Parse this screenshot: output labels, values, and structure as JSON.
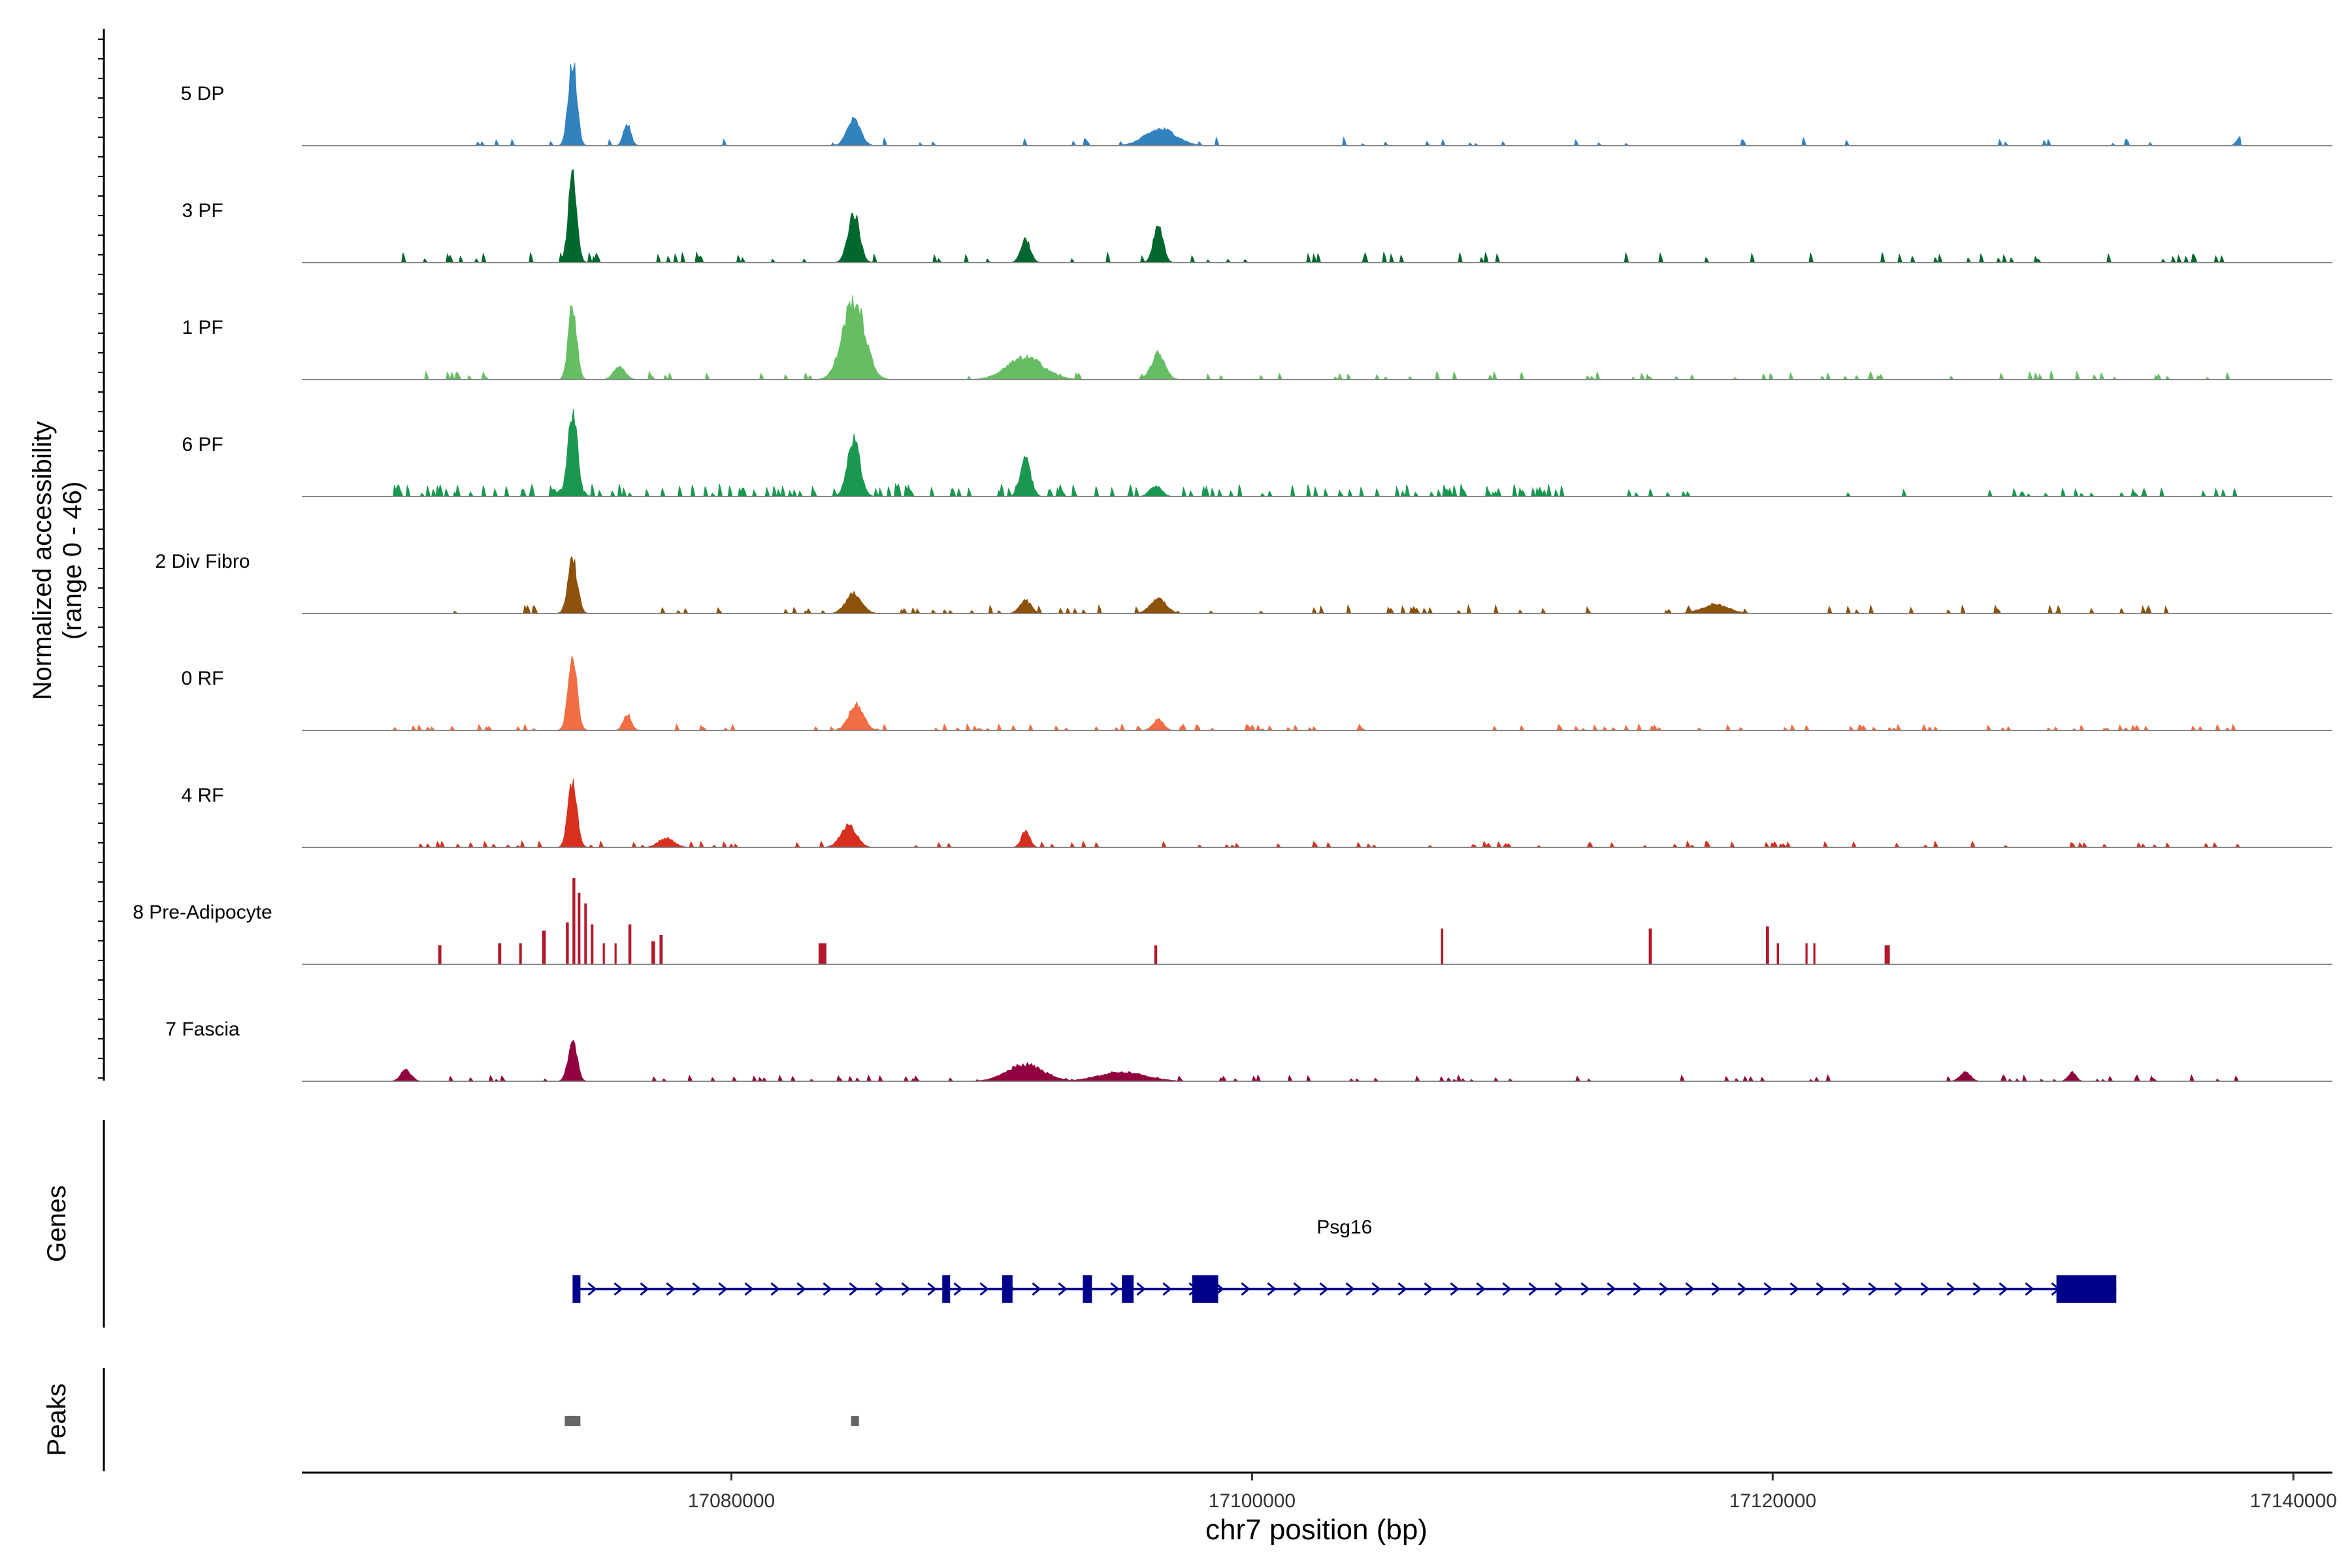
{
  "chart_data": {
    "type": "coverage-track",
    "y_axis": {
      "title_line1": "Normalized accessibility",
      "title_line2": "(range 0 - 46)",
      "ylim": [
        0,
        46
      ]
    },
    "x_axis": {
      "title": "chr7 position (bp)",
      "xlim": [
        17063500,
        17141500
      ],
      "ticks": [
        17080000,
        17100000,
        17120000,
        17140000
      ],
      "tick_labels": [
        "17080000",
        "17100000",
        "17120000",
        "17140000"
      ]
    },
    "region": [
      17067000,
      17138000
    ],
    "tracks": [
      {
        "name": "5 DP",
        "color": "#3182bd",
        "peaks": [
          [
            17073900,
            46,
            160
          ],
          [
            17076000,
            12,
            140
          ],
          [
            17084700,
            14,
            260
          ],
          [
            17096500,
            9,
            600
          ],
          [
            17138000,
            6,
            150
          ]
        ],
        "noise": [
          [
            17067000,
            17138000,
            0.028,
            4
          ]
        ]
      },
      {
        "name": "3 PF",
        "color": "#00682e",
        "peaks": [
          [
            17073900,
            46,
            160
          ],
          [
            17084700,
            27,
            220
          ],
          [
            17091300,
            13,
            180
          ],
          [
            17096400,
            20,
            180
          ]
        ],
        "noise": [
          [
            17067000,
            17138000,
            0.06,
            5
          ]
        ]
      },
      {
        "name": "1 PF",
        "color": "#66bd63",
        "peaks": [
          [
            17073900,
            40,
            160
          ],
          [
            17084700,
            43,
            420
          ],
          [
            17091300,
            12,
            700
          ],
          [
            17096400,
            14,
            260
          ],
          [
            17075700,
            7,
            220
          ]
        ],
        "noise": [
          [
            17067000,
            17138000,
            0.06,
            4
          ]
        ]
      },
      {
        "name": "6 PF",
        "color": "#1a9850",
        "peaks": [
          [
            17073900,
            46,
            180
          ],
          [
            17084700,
            30,
            240
          ],
          [
            17091300,
            20,
            200
          ],
          [
            17096300,
            6,
            220
          ],
          [
            17073800,
            8,
            300
          ]
        ],
        "noise": [
          [
            17067000,
            17112000,
            0.13,
            6
          ],
          [
            17112000,
            17138000,
            0.05,
            4
          ]
        ]
      },
      {
        "name": "2 Div Fibro",
        "color": "#8c510a",
        "peaks": [
          [
            17073900,
            29,
            180
          ],
          [
            17084700,
            11,
            300
          ],
          [
            17091300,
            7,
            220
          ],
          [
            17096400,
            8,
            300
          ],
          [
            17117800,
            5,
            500
          ]
        ],
        "noise": [
          [
            17067000,
            17138000,
            0.07,
            4
          ]
        ]
      },
      {
        "name": "0 RF",
        "color": "#f16d43",
        "peaks": [
          [
            17073900,
            38,
            170
          ],
          [
            17084800,
            14,
            280
          ],
          [
            17076000,
            9,
            150
          ],
          [
            17096400,
            6,
            200
          ]
        ],
        "noise": [
          [
            17067000,
            17138000,
            0.07,
            3
          ]
        ]
      },
      {
        "name": "4 RF",
        "color": "#d7301f",
        "peaks": [
          [
            17073900,
            35,
            170
          ],
          [
            17084500,
            12,
            300
          ],
          [
            17091300,
            9,
            160
          ],
          [
            17077500,
            5,
            300
          ]
        ],
        "noise": [
          [
            17067000,
            17138000,
            0.07,
            3
          ]
        ]
      },
      {
        "name": "8 Pre-Adipocyte",
        "color": "#b2182b",
        "bars": [
          [
            17068800,
            9,
            120
          ],
          [
            17071100,
            10,
            120
          ],
          [
            17071900,
            10,
            100
          ],
          [
            17072800,
            16,
            140
          ],
          [
            17073700,
            20,
            110
          ],
          [
            17073950,
            41,
            110
          ],
          [
            17074150,
            34,
            100
          ],
          [
            17074400,
            29,
            100
          ],
          [
            17074650,
            19,
            100
          ],
          [
            17075100,
            10,
            80
          ],
          [
            17075550,
            10,
            80
          ],
          [
            17076100,
            19,
            110
          ],
          [
            17077000,
            11,
            140
          ],
          [
            17077300,
            14,
            120
          ],
          [
            17083500,
            10,
            300
          ],
          [
            17096300,
            9,
            110
          ],
          [
            17107300,
            17,
            90
          ],
          [
            17115300,
            17,
            120
          ],
          [
            17119800,
            18,
            120
          ],
          [
            17120200,
            10,
            90
          ],
          [
            17121300,
            10,
            80
          ],
          [
            17121600,
            10,
            80
          ],
          [
            17124400,
            9,
            200
          ]
        ],
        "noise": []
      },
      {
        "name": "7 Fascia",
        "color": "#91003f",
        "peaks": [
          [
            17073900,
            22,
            170
          ],
          [
            17091300,
            9,
            700
          ],
          [
            17095000,
            5,
            900
          ],
          [
            17067500,
            6,
            200
          ],
          [
            17127400,
            5,
            200
          ],
          [
            17131500,
            5,
            150
          ]
        ],
        "noise": [
          [
            17067000,
            17138000,
            0.06,
            3
          ]
        ]
      }
    ],
    "genes": {
      "title": "Genes",
      "name": "Psg16",
      "strand": "+",
      "start": 17073900,
      "end": 17133200,
      "exons": [
        [
          17073900,
          17074200
        ],
        [
          17088100,
          17088400
        ],
        [
          17090400,
          17090800
        ],
        [
          17093500,
          17093850
        ],
        [
          17095000,
          17095450
        ],
        [
          17097700,
          17098700
        ]
      ],
      "cds": [
        [
          17130900,
          17133200
        ]
      ]
    },
    "peaks_track": {
      "title": "Peaks",
      "peaks": [
        [
          17073600,
          17074200
        ],
        [
          17084600,
          17084900
        ]
      ]
    }
  }
}
